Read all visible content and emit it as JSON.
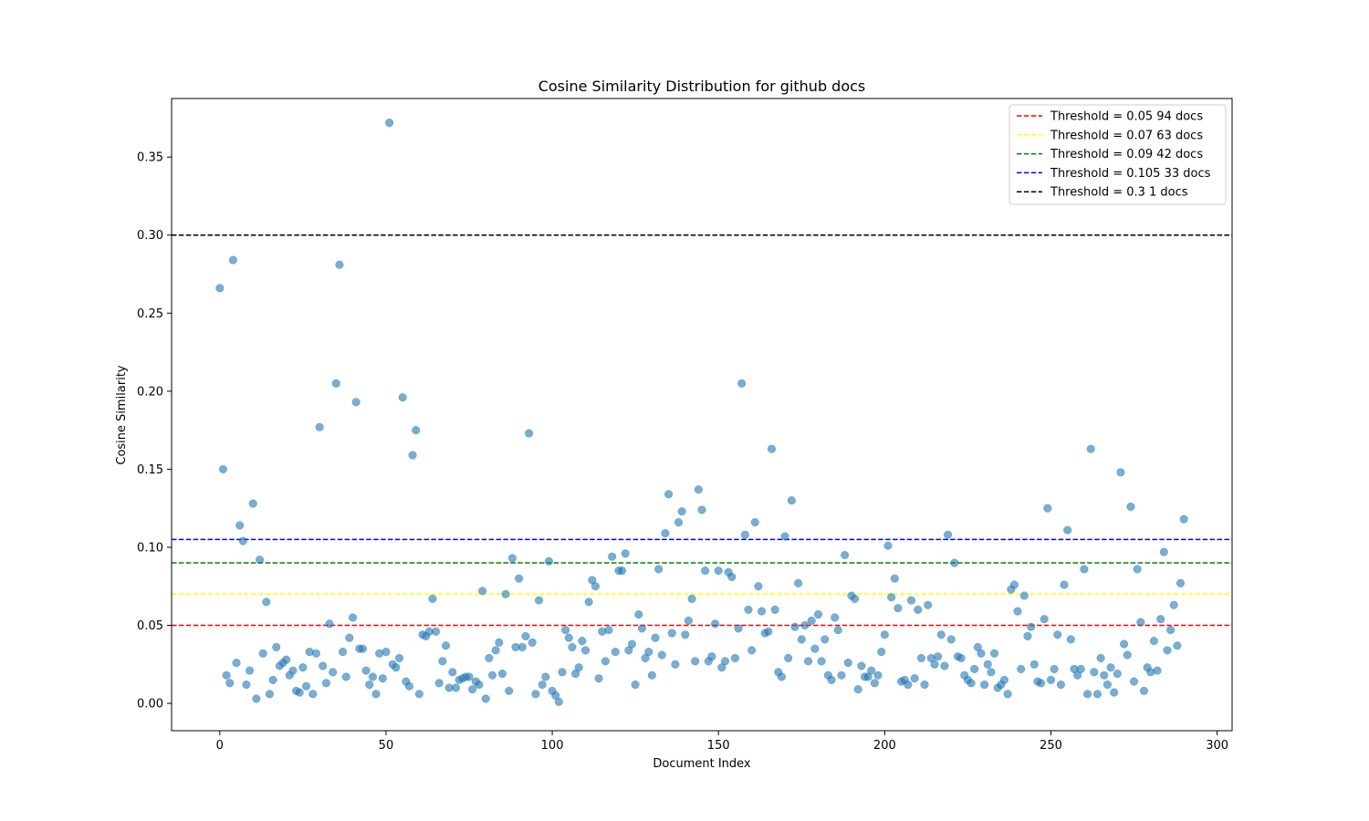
{
  "chart_data": {
    "type": "scatter",
    "title": "Cosine Similarity Distribution for github docs",
    "xlabel": "Document Index",
    "ylabel": "Cosine Similarity",
    "xlim": [
      -14.5,
      304.5
    ],
    "ylim": [
      -0.0175,
      0.3875
    ],
    "xticks": [
      0,
      50,
      100,
      150,
      200,
      250,
      300
    ],
    "yticks": [
      0.0,
      0.05,
      0.1,
      0.15,
      0.2,
      0.25,
      0.3,
      0.35
    ],
    "ytick_labels": [
      "0.00",
      "0.05",
      "0.10",
      "0.15",
      "0.20",
      "0.25",
      "0.30",
      "0.35"
    ],
    "grid": false,
    "legend_position": "top-right",
    "point_color": "#1f77b4",
    "series": [
      {
        "x": [
          0,
          1,
          2,
          3,
          4,
          5,
          6,
          7,
          8,
          9,
          10,
          11,
          12,
          13,
          14,
          15,
          16,
          17,
          18,
          19,
          20,
          21,
          22,
          23,
          24,
          25,
          26,
          27,
          28,
          29,
          30,
          31,
          32,
          33,
          34,
          35,
          36,
          37,
          38,
          39,
          40,
          41,
          42,
          43,
          44,
          45,
          46,
          47,
          48,
          49,
          50,
          51,
          52,
          53,
          54,
          55,
          56,
          57,
          58,
          59,
          60,
          61,
          62,
          63,
          64,
          65,
          66,
          67,
          68,
          69,
          70,
          71,
          72,
          73,
          74,
          75,
          76,
          77,
          78,
          79,
          80,
          81,
          82,
          83,
          84,
          85,
          86,
          87,
          88,
          89,
          90,
          91,
          92,
          93,
          94,
          95,
          96,
          97,
          98,
          99,
          100,
          101,
          102,
          103,
          104,
          105,
          106,
          107,
          108,
          109,
          110,
          111,
          112,
          113,
          114,
          115,
          116,
          117,
          118,
          119,
          120,
          121,
          122,
          123,
          124,
          125,
          126,
          127,
          128,
          129,
          130,
          131,
          132,
          133,
          134,
          135,
          136,
          137,
          138,
          139,
          140,
          141,
          142,
          143,
          144,
          145,
          146,
          147,
          148,
          149,
          150,
          151,
          152,
          153,
          154,
          155,
          156,
          157,
          158,
          159,
          160,
          161,
          162,
          163,
          164,
          165,
          166,
          167,
          168,
          169,
          170,
          171,
          172,
          173,
          174,
          175,
          176,
          177,
          178,
          179,
          180,
          181,
          182,
          183,
          184,
          185,
          186,
          187,
          188,
          189,
          190,
          191,
          192,
          193,
          194,
          195,
          196,
          197,
          198,
          199,
          200,
          201,
          202,
          203,
          204,
          205,
          206,
          207,
          208,
          209,
          210,
          211,
          212,
          213,
          214,
          215,
          216,
          217,
          218,
          219,
          220,
          221,
          222,
          223,
          224,
          225,
          226,
          227,
          228,
          229,
          230,
          231,
          232,
          233,
          234,
          235,
          236,
          237,
          238,
          239,
          240,
          241,
          242,
          243,
          244,
          245,
          246,
          247,
          248,
          249,
          250,
          251,
          252,
          253,
          254,
          255,
          256,
          257,
          258,
          259,
          260,
          261,
          262,
          263,
          264,
          265,
          266,
          267,
          268,
          269,
          270,
          271,
          272,
          273,
          274,
          275,
          276,
          277,
          278,
          279,
          280,
          281,
          282,
          283,
          284,
          285,
          286,
          287,
          288,
          289,
          290
        ],
        "values": [
          0.266,
          0.15,
          0.018,
          0.013,
          0.284,
          0.026,
          0.114,
          0.104,
          0.012,
          0.021,
          0.128,
          0.003,
          0.092,
          0.032,
          0.065,
          0.006,
          0.015,
          0.036,
          0.024,
          0.026,
          0.028,
          0.018,
          0.021,
          0.008,
          0.007,
          0.023,
          0.011,
          0.033,
          0.006,
          0.032,
          0.177,
          0.024,
          0.013,
          0.051,
          0.02,
          0.205,
          0.281,
          0.033,
          0.017,
          0.042,
          0.055,
          0.193,
          0.035,
          0.035,
          0.021,
          0.012,
          0.017,
          0.006,
          0.032,
          0.016,
          0.033,
          0.372,
          0.025,
          0.023,
          0.029,
          0.196,
          0.014,
          0.011,
          0.159,
          0.175,
          0.006,
          0.044,
          0.043,
          0.046,
          0.067,
          0.046,
          0.013,
          0.027,
          0.037,
          0.01,
          0.02,
          0.01,
          0.015,
          0.016,
          0.017,
          0.017,
          0.009,
          0.014,
          0.012,
          0.072,
          0.003,
          0.029,
          0.018,
          0.034,
          0.039,
          0.019,
          0.07,
          0.008,
          0.093,
          0.036,
          0.08,
          0.036,
          0.043,
          0.173,
          0.039,
          0.006,
          0.066,
          0.012,
          0.017,
          0.091,
          0.008,
          0.005,
          0.001,
          0.02,
          0.047,
          0.042,
          0.036,
          0.019,
          0.023,
          0.04,
          0.034,
          0.065,
          0.079,
          0.075,
          0.016,
          0.046,
          0.027,
          0.047,
          0.094,
          0.033,
          0.085,
          0.085,
          0.096,
          0.034,
          0.038,
          0.012,
          0.057,
          0.048,
          0.029,
          0.033,
          0.018,
          0.042,
          0.086,
          0.031,
          0.109,
          0.134,
          0.045,
          0.025,
          0.116,
          0.123,
          0.044,
          0.053,
          0.067,
          0.027,
          0.137,
          0.124,
          0.085,
          0.027,
          0.03,
          0.051,
          0.085,
          0.023,
          0.027,
          0.084,
          0.081,
          0.029,
          0.048,
          0.205,
          0.108,
          0.06,
          0.034,
          0.116,
          0.075,
          0.059,
          0.045,
          0.046,
          0.163,
          0.06,
          0.02,
          0.017,
          0.107,
          0.029,
          0.13,
          0.049,
          0.077,
          0.041,
          0.05,
          0.027,
          0.053,
          0.035,
          0.057,
          0.027,
          0.041,
          0.018,
          0.015,
          0.055,
          0.047,
          0.018,
          0.095,
          0.026,
          0.069,
          0.067,
          0.009,
          0.024,
          0.017,
          0.017,
          0.021,
          0.013,
          0.018,
          0.033,
          0.044,
          0.101,
          0.068,
          0.08,
          0.061,
          0.014,
          0.015,
          0.012,
          0.066,
          0.016,
          0.06,
          0.029,
          0.012,
          0.063,
          0.029,
          0.025,
          0.03,
          0.044,
          0.024,
          0.108,
          0.041,
          0.09,
          0.03,
          0.029,
          0.018,
          0.015,
          0.013,
          0.022,
          0.036,
          0.032,
          0.012,
          0.025,
          0.02,
          0.032,
          0.01,
          0.012,
          0.015,
          0.006,
          0.073,
          0.076,
          0.059,
          0.022,
          0.069,
          0.043,
          0.049,
          0.025,
          0.014,
          0.013,
          0.054,
          0.125,
          0.015,
          0.022,
          0.044,
          0.012,
          0.076,
          0.111,
          0.041,
          0.022,
          0.018,
          0.022,
          0.086,
          0.006,
          0.163,
          0.02,
          0.006,
          0.029,
          0.018,
          0.012,
          0.023,
          0.007,
          0.019,
          0.148,
          0.038,
          0.031,
          0.126,
          0.014,
          0.086,
          0.052,
          0.008,
          0.023,
          0.02,
          0.04,
          0.021,
          0.054,
          0.097,
          0.034,
          0.047,
          0.063,
          0.037,
          0.077,
          0.118
        ]
      }
    ],
    "thresholds": [
      {
        "value": 0.3,
        "label": "Threshold = 0.3 1 docs",
        "color": "#000000"
      },
      {
        "value": 0.105,
        "label": "Threshold = 0.105 33 docs",
        "color": "#0000ff"
      },
      {
        "value": 0.09,
        "label": "Threshold = 0.09 42 docs",
        "color": "#008000"
      },
      {
        "value": 0.07,
        "label": "Threshold = 0.07 63 docs",
        "color": "#ffff00"
      },
      {
        "value": 0.05,
        "label": "Threshold = 0.05 94 docs",
        "color": "#ff0000"
      }
    ],
    "legend": [
      {
        "label": "Threshold = 0.05 94 docs",
        "color": "#ff0000"
      },
      {
        "label": "Threshold = 0.07 63 docs",
        "color": "#ffff00"
      },
      {
        "label": "Threshold = 0.09 42 docs",
        "color": "#008000"
      },
      {
        "label": "Threshold = 0.105 33 docs",
        "color": "#0000ff"
      },
      {
        "label": "Threshold = 0.3 1 docs",
        "color": "#000000"
      }
    ]
  }
}
